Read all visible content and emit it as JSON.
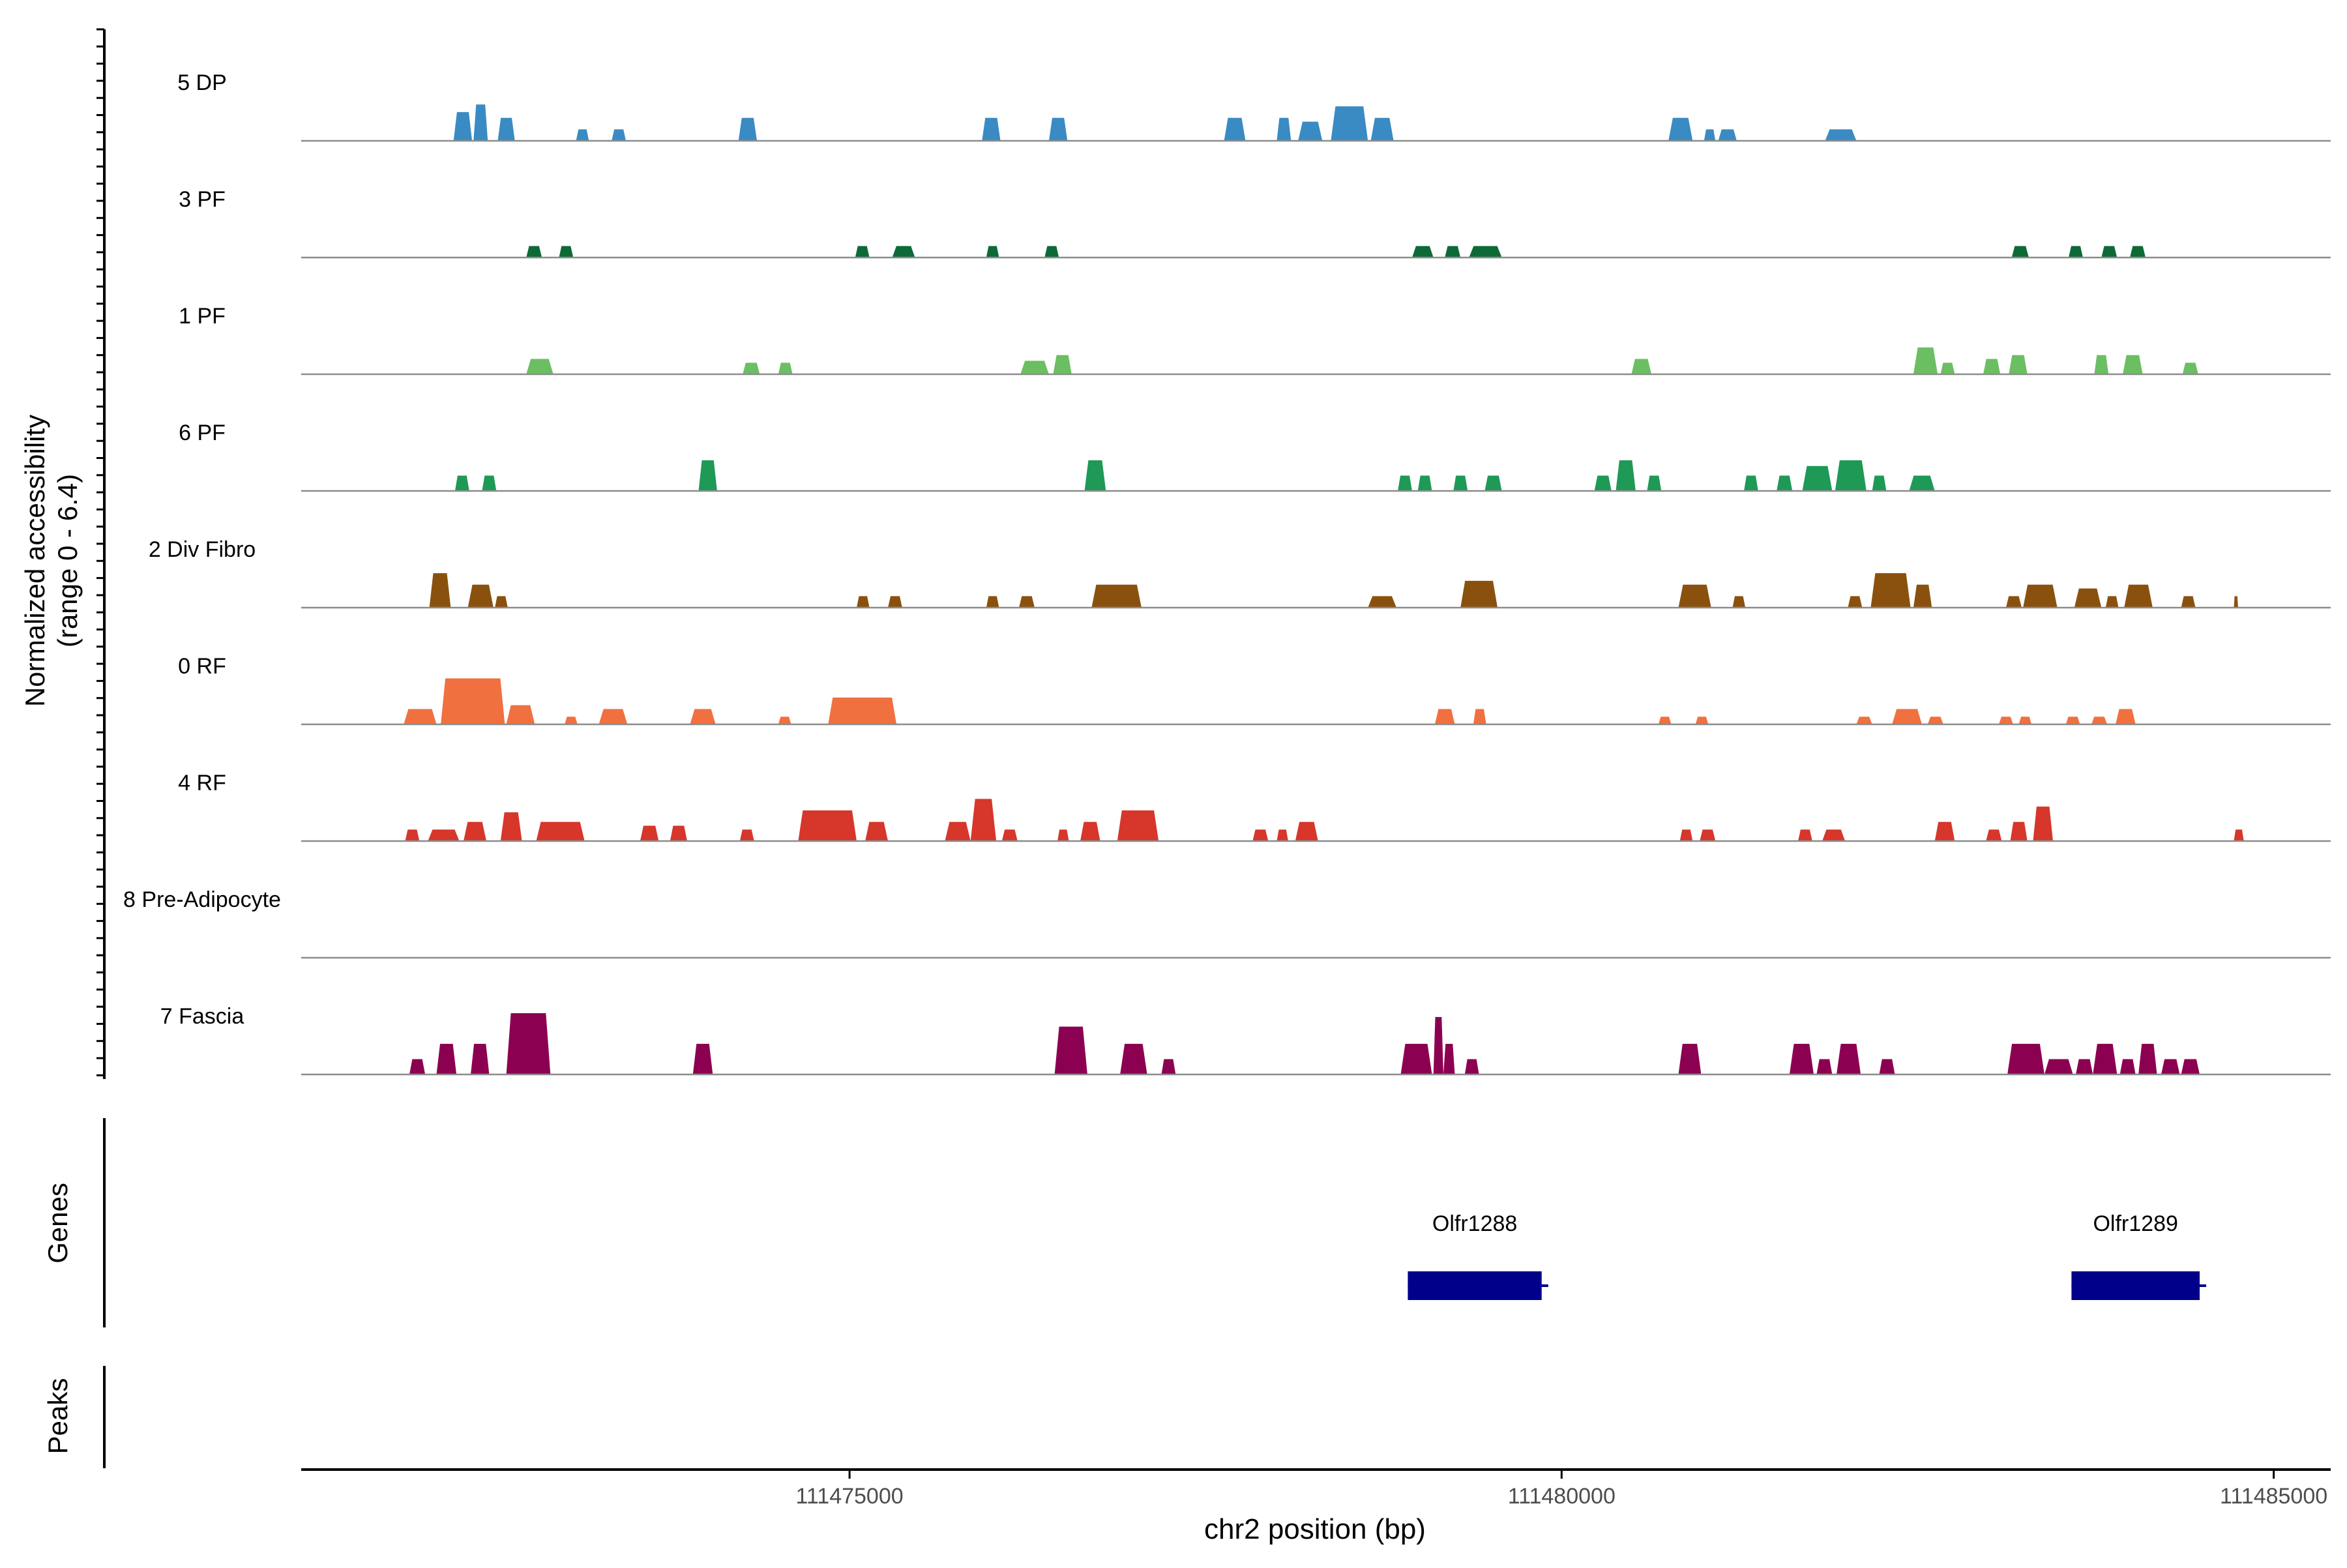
{
  "chart_data": {
    "type": "area",
    "title": "",
    "ylabel_lines": [
      "Normalized accessibility",
      "(range 0 - 6.4)"
    ],
    "xlabel": "chr2 position (bp)",
    "xlim": [
      111471150,
      111485400
    ],
    "y_range": [
      0,
      6.4
    ],
    "x_ticks": [
      111475000,
      111480000,
      111485000
    ],
    "x_tick_labels": [
      "111475000",
      "111480000",
      "111485000"
    ],
    "genes_label": "Genes",
    "peaks_label": "Peaks",
    "genes": [
      {
        "name": "Olfr1288",
        "start": 111478920,
        "end": 111479860
      },
      {
        "name": "Olfr1289",
        "start": 111483580,
        "end": 111484480
      }
    ],
    "tracks": [
      {
        "name": "5 DP",
        "color": "#3a8bc3",
        "peaks": [
          [
            111472220,
            111472350,
            3.0
          ],
          [
            111472360,
            111472460,
            3.8
          ],
          [
            111472530,
            111472650,
            2.4
          ],
          [
            111473080,
            111473170,
            1.2
          ],
          [
            111473330,
            111473430,
            1.2
          ],
          [
            111474220,
            111474350,
            2.4
          ],
          [
            111475930,
            111476060,
            2.4
          ],
          [
            111476400,
            111476530,
            2.4
          ],
          [
            111477630,
            111477780,
            2.4
          ],
          [
            111478000,
            111478100,
            2.4
          ],
          [
            111478150,
            111478320,
            2.0
          ],
          [
            111478380,
            111478640,
            3.6
          ],
          [
            111478660,
            111478820,
            2.4
          ],
          [
            111480750,
            111480920,
            2.4
          ],
          [
            111481000,
            111481080,
            1.2
          ],
          [
            111481100,
            111481230,
            1.2
          ],
          [
            111481850,
            111482070,
            1.2
          ]
        ]
      },
      {
        "name": "3 PF",
        "color": "#0d6a37",
        "peaks": [
          [
            111472730,
            111472840,
            1.2
          ],
          [
            111472960,
            111473060,
            1.2
          ],
          [
            111475040,
            111475140,
            1.2
          ],
          [
            111475300,
            111475460,
            1.2
          ],
          [
            111475960,
            111476050,
            1.2
          ],
          [
            111476370,
            111476470,
            1.2
          ],
          [
            111478950,
            111479100,
            1.2
          ],
          [
            111479180,
            111479290,
            1.2
          ],
          [
            111479350,
            111479580,
            1.2
          ],
          [
            111483160,
            111483280,
            1.2
          ],
          [
            111483560,
            111483660,
            1.2
          ],
          [
            111483790,
            111483900,
            1.2
          ],
          [
            111483990,
            111484100,
            1.2
          ]
        ]
      },
      {
        "name": "1 PF",
        "color": "#6bbf62",
        "peaks": [
          [
            111472730,
            111472920,
            1.6
          ],
          [
            111474250,
            111474370,
            1.2
          ],
          [
            111474500,
            111474600,
            1.2
          ],
          [
            111476200,
            111476400,
            1.4
          ],
          [
            111476430,
            111476560,
            2.0
          ],
          [
            111480490,
            111480630,
            1.6
          ],
          [
            111482470,
            111482640,
            2.8
          ],
          [
            111482660,
            111482760,
            1.2
          ],
          [
            111482960,
            111483080,
            1.6
          ],
          [
            111483140,
            111483270,
            2.0
          ],
          [
            111483740,
            111483840,
            2.0
          ],
          [
            111483940,
            111484080,
            2.0
          ],
          [
            111484360,
            111484470,
            1.2
          ]
        ]
      },
      {
        "name": "6 PF",
        "color": "#1f9956",
        "peaks": [
          [
            111472230,
            111472330,
            1.6
          ],
          [
            111472420,
            111472520,
            1.6
          ],
          [
            111473940,
            111474070,
            3.2
          ],
          [
            111476650,
            111476800,
            3.2
          ],
          [
            111478850,
            111478950,
            1.6
          ],
          [
            111478990,
            111479090,
            1.6
          ],
          [
            111479240,
            111479340,
            1.6
          ],
          [
            111479460,
            111479580,
            1.6
          ],
          [
            111480230,
            111480350,
            1.6
          ],
          [
            111480380,
            111480520,
            3.2
          ],
          [
            111480600,
            111480700,
            1.6
          ],
          [
            111481280,
            111481380,
            1.6
          ],
          [
            111481510,
            111481620,
            1.6
          ],
          [
            111481690,
            111481900,
            2.6
          ],
          [
            111481920,
            111482140,
            3.2
          ],
          [
            111482180,
            111482280,
            1.6
          ],
          [
            111482440,
            111482620,
            1.6
          ]
        ]
      },
      {
        "name": "2 Div Fibro",
        "color": "#8a510e",
        "peaks": [
          [
            111472050,
            111472200,
            3.6
          ],
          [
            111472320,
            111472500,
            2.4
          ],
          [
            111472510,
            111472600,
            1.2
          ],
          [
            111475050,
            111475140,
            1.2
          ],
          [
            111475270,
            111475370,
            1.2
          ],
          [
            111475960,
            111476050,
            1.2
          ],
          [
            111476190,
            111476300,
            1.2
          ],
          [
            111476700,
            111477050,
            2.4
          ],
          [
            111478640,
            111478840,
            1.2
          ],
          [
            111479290,
            111479550,
            2.8
          ],
          [
            111480820,
            111481050,
            2.4
          ],
          [
            111481200,
            111481290,
            1.2
          ],
          [
            111482010,
            111482110,
            1.2
          ],
          [
            111482170,
            111482450,
            3.6
          ],
          [
            111482470,
            111482600,
            2.4
          ],
          [
            111483120,
            111483230,
            1.2
          ],
          [
            111483240,
            111483480,
            2.4
          ],
          [
            111483600,
            111483790,
            2.0
          ],
          [
            111483820,
            111483910,
            1.2
          ],
          [
            111483950,
            111484150,
            2.4
          ],
          [
            111484350,
            111484450,
            1.2
          ],
          [
            111484720,
            111484750,
            1.2
          ]
        ]
      },
      {
        "name": "0 RF",
        "color": "#f07040",
        "peaks": [
          [
            111471870,
            111472100,
            1.6
          ],
          [
            111472130,
            111472580,
            4.8
          ],
          [
            111472590,
            111472790,
            2.0
          ],
          [
            111473000,
            111473090,
            0.8
          ],
          [
            111473240,
            111473440,
            1.6
          ],
          [
            111473880,
            111474060,
            1.6
          ],
          [
            111474500,
            111474590,
            0.8
          ],
          [
            111474850,
            111475330,
            2.8
          ],
          [
            111479110,
            111479250,
            1.6
          ],
          [
            111479380,
            111479470,
            1.6
          ],
          [
            111480680,
            111480770,
            0.8
          ],
          [
            111480940,
            111481030,
            0.8
          ],
          [
            111482070,
            111482180,
            0.8
          ],
          [
            111482320,
            111482530,
            1.6
          ],
          [
            111482570,
            111482680,
            0.8
          ],
          [
            111483070,
            111483170,
            0.8
          ],
          [
            111483210,
            111483300,
            0.8
          ],
          [
            111483540,
            111483640,
            0.8
          ],
          [
            111483720,
            111483830,
            0.8
          ],
          [
            111483890,
            111484030,
            1.6
          ]
        ]
      },
      {
        "name": "4 RF",
        "color": "#d7362b",
        "peaks": [
          [
            111471880,
            111471980,
            1.2
          ],
          [
            111472040,
            111472260,
            1.2
          ],
          [
            111472290,
            111472450,
            2.0
          ],
          [
            111472550,
            111472700,
            3.0
          ],
          [
            111472800,
            111473140,
            2.0
          ],
          [
            111473530,
            111473660,
            1.6
          ],
          [
            111473740,
            111473860,
            1.6
          ],
          [
            111474230,
            111474330,
            1.2
          ],
          [
            111474640,
            111475050,
            3.2
          ],
          [
            111475110,
            111475270,
            2.0
          ],
          [
            111475670,
            111475850,
            2.0
          ],
          [
            111475850,
            111476030,
            4.4
          ],
          [
            111476070,
            111476180,
            1.2
          ],
          [
            111476460,
            111476540,
            1.2
          ],
          [
            111476620,
            111476760,
            2.0
          ],
          [
            111476880,
            111477170,
            3.2
          ],
          [
            111477830,
            111477940,
            1.2
          ],
          [
            111478000,
            111478080,
            1.2
          ],
          [
            111478130,
            111478290,
            2.0
          ],
          [
            111480830,
            111480920,
            1.2
          ],
          [
            111480970,
            111481080,
            1.2
          ],
          [
            111481660,
            111481760,
            1.2
          ],
          [
            111481830,
            111481990,
            1.2
          ],
          [
            111482620,
            111482760,
            2.0
          ],
          [
            111482980,
            111483090,
            1.2
          ],
          [
            111483150,
            111483270,
            2.0
          ],
          [
            111483310,
            111483450,
            3.6
          ],
          [
            111484720,
            111484790,
            1.2
          ]
        ]
      },
      {
        "name": "8 Pre-Adipocyte",
        "color": "#5e3c99",
        "peaks": []
      },
      {
        "name": "7 Fascia",
        "color": "#8c0051",
        "peaks": [
          [
            111471910,
            111472020,
            1.6
          ],
          [
            111472100,
            111472240,
            3.2
          ],
          [
            111472340,
            111472470,
            3.2
          ],
          [
            111472590,
            111472900,
            6.4
          ],
          [
            111473900,
            111474040,
            3.2
          ],
          [
            111476440,
            111476670,
            5.0
          ],
          [
            111476900,
            111477090,
            3.2
          ],
          [
            111477190,
            111477290,
            1.6
          ],
          [
            111478870,
            111479090,
            3.2
          ],
          [
            111479100,
            111479170,
            6.0
          ],
          [
            111479170,
            111479250,
            3.2
          ],
          [
            111479320,
            111479420,
            1.6
          ],
          [
            111480820,
            111480980,
            3.2
          ],
          [
            111481600,
            111481770,
            3.2
          ],
          [
            111481790,
            111481900,
            1.6
          ],
          [
            111481930,
            111482100,
            3.2
          ],
          [
            111482230,
            111482340,
            1.6
          ],
          [
            111483130,
            111483390,
            3.2
          ],
          [
            111483390,
            111483590,
            1.6
          ],
          [
            111483610,
            111483730,
            1.6
          ],
          [
            111483730,
            111483900,
            3.2
          ],
          [
            111483920,
            111484030,
            1.6
          ],
          [
            111484050,
            111484180,
            3.2
          ],
          [
            111484210,
            111484340,
            1.6
          ],
          [
            111484350,
            111484480,
            1.6
          ]
        ]
      }
    ]
  }
}
